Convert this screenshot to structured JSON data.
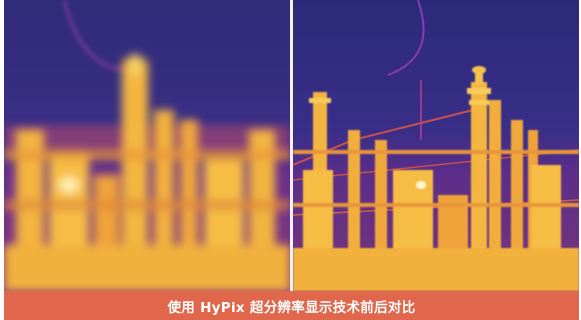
{
  "caption": {
    "text": "使用 HyPix 超分辨率显示技术前后对比"
  },
  "panels": [
    {
      "label": "",
      "state": "before-blurred"
    },
    {
      "label": "",
      "state": "after-sharp"
    }
  ],
  "colors": {
    "sky_top": "#2b2a7a",
    "sky_mid": "#3b2f8c",
    "hot": "#f7c23a",
    "warm": "#f09a3a",
    "caption_bg": "#e0664c"
  }
}
